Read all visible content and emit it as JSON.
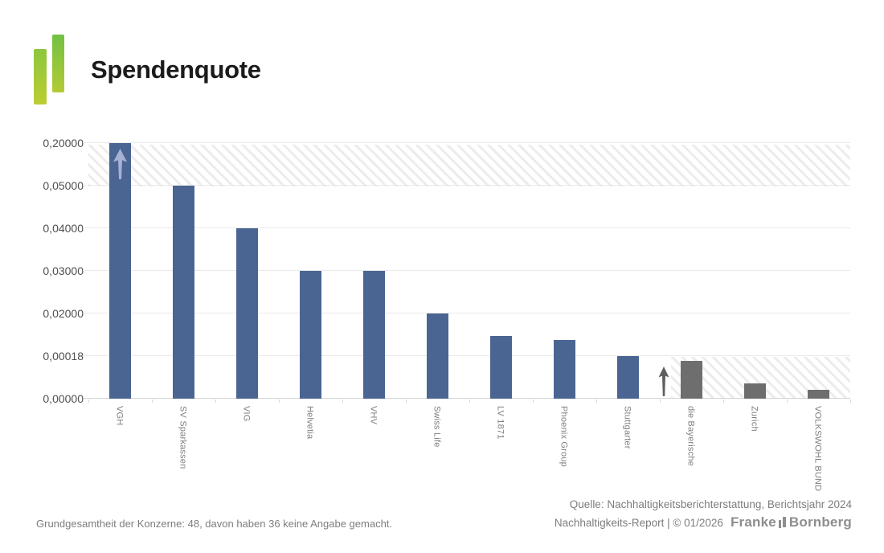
{
  "header": {
    "title": "Spendenquote"
  },
  "logo": {
    "description": "two green gradient bars",
    "color_top": "#7cc142",
    "color_bottom": "#bccd32"
  },
  "chart_data": {
    "type": "bar",
    "title": "Spendenquote",
    "categories": [
      "VGH",
      "SV Sparkassen",
      "VIG",
      "Helvetia",
      "VHV",
      "Swiss Life",
      "LV 1871",
      "Phoenix Group",
      "Stuttgarter",
      "die Bayerische",
      "Zurich",
      "VOLKSWOHL BUND"
    ],
    "values": [
      0.2,
      0.05,
      0.04,
      0.03,
      0.03,
      0.02,
      0.01,
      0.008,
      0.00018,
      0.00016,
      6e-05,
      4e-05
    ],
    "values_note": "Y axis is non-linear: tick labels are evenly spaced. Values for LV 1871, Phoenix Group and the three grey bars are estimated from bar heights. VGH bar is capped at the axis top and carries an up-arrow marker.",
    "levels": [
      6,
      5,
      4,
      3,
      3,
      2,
      1.47,
      1.38,
      1.0,
      0.89,
      0.36,
      0.21
    ],
    "bar_colors": [
      "blue",
      "blue",
      "blue",
      "blue",
      "blue",
      "blue",
      "blue",
      "blue",
      "blue",
      "gray",
      "gray",
      "gray"
    ],
    "y_ticks": [
      "0,00000",
      "0,00018",
      "0,02000",
      "0,03000",
      "0,04000",
      "0,05000",
      "0,20000"
    ],
    "ylim": [
      0,
      0.2
    ],
    "xlabel": "",
    "ylabel": "",
    "grid": "horizontal",
    "legend": "none",
    "colors": {
      "blue": "#4a6592",
      "gray": "#6e6e6e",
      "blue_arrow": "#a7b1d3",
      "gray_arrow": "#5f5f5f",
      "hatch_stripe": "#ececec",
      "gridline": "#eaeaea",
      "baseline": "#d4d4d4"
    },
    "annotations": [
      {
        "name": "axis-break-hatch-top",
        "desc": "hatched band between 0,05000 and 0,20000 across the full plot width"
      },
      {
        "name": "axis-break-hatch-bottom-right",
        "desc": "hatched band between 0,00000 and 0,00018 behind the three grey bars"
      },
      {
        "name": "up-arrow-in-vgh-bar",
        "desc": "light blue up arrow inside the top of the VGH bar"
      },
      {
        "name": "up-arrow-before-grey-bars",
        "desc": "grey up arrow between Stuttgarter and die Bayerische"
      }
    ]
  },
  "footer": {
    "note": "Grundgesamtheit der Konzerne: 48, davon haben 36 keine Angabe gemacht.",
    "source_line1": "Quelle: Nachhaltigkeitsberichterstattung, Berichtsjahr 2024",
    "source_line2": "Nachhaltigkeits-Report | © 01/2026",
    "brand_left": "Franke",
    "brand_right": "Bornberg"
  }
}
